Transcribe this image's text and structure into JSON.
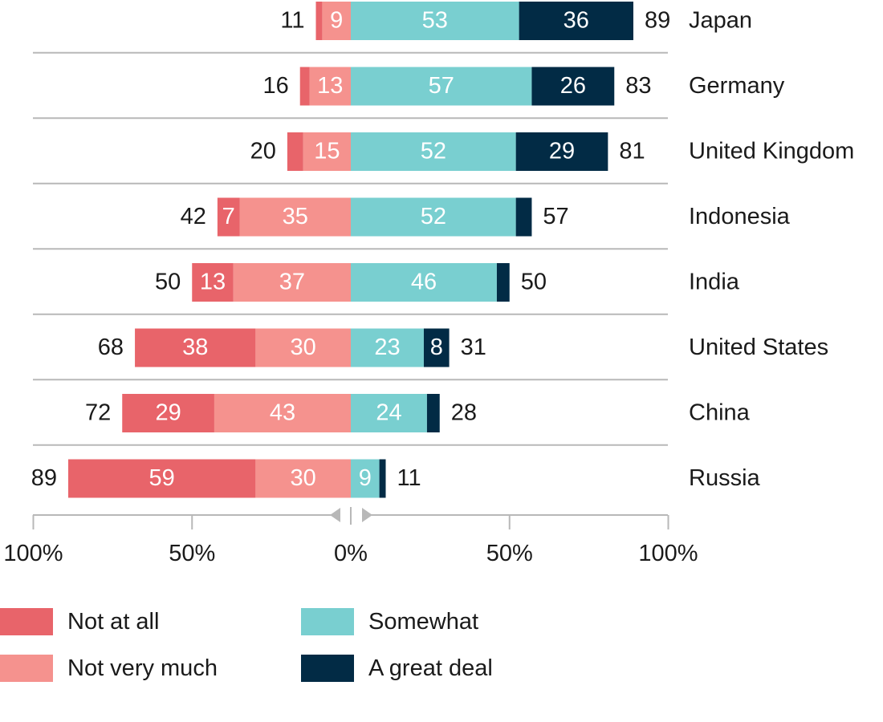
{
  "chart_data": {
    "type": "bar",
    "orientation": "horizontal-diverging",
    "categories": [
      "Japan",
      "Germany",
      "United Kingdom",
      "Indonesia",
      "India",
      "United States",
      "China",
      "Russia"
    ],
    "series": [
      {
        "name": "Not at all",
        "side": "negative",
        "color": "#e8646a",
        "values": [
          2,
          3,
          5,
          7,
          13,
          38,
          29,
          59
        ]
      },
      {
        "name": "Not very much",
        "side": "negative",
        "color": "#f5928e",
        "values": [
          9,
          13,
          15,
          35,
          37,
          30,
          43,
          30
        ]
      },
      {
        "name": "Somewhat",
        "side": "positive",
        "color": "#79cfd0",
        "values": [
          53,
          57,
          52,
          52,
          46,
          23,
          24,
          9
        ]
      },
      {
        "name": "A great deal",
        "side": "positive",
        "color": "#022b45",
        "values": [
          36,
          26,
          29,
          5,
          4,
          8,
          4,
          2
        ]
      }
    ],
    "segment_labels": {
      "Not at all": [
        "",
        "",
        "",
        "7",
        "13",
        "38",
        "29",
        "59"
      ],
      "Not very much": [
        "9",
        "13",
        "15",
        "35",
        "37",
        "30",
        "43",
        "30"
      ],
      "Somewhat": [
        "53",
        "57",
        "52",
        "52",
        "46",
        "23",
        "24",
        "9"
      ],
      "A great deal": [
        "36",
        "26",
        "29",
        "",
        "",
        "8",
        "",
        ""
      ]
    },
    "negative_totals": [
      "11",
      "16",
      "20",
      "42",
      "50",
      "68",
      "72",
      "89"
    ],
    "positive_totals": [
      "89",
      "83",
      "81",
      "57",
      "50",
      "31",
      "28",
      "11"
    ],
    "xlim": [
      -100,
      100
    ],
    "x_ticks": [
      -100,
      -50,
      0,
      50,
      100
    ],
    "x_tick_labels": [
      "100%",
      "50%",
      "0%",
      "50%",
      "100%"
    ],
    "grid": false,
    "legend_position": "bottom"
  }
}
